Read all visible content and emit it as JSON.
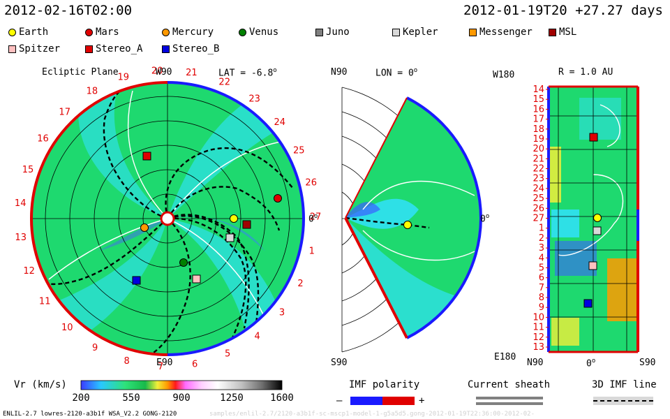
{
  "header": {
    "left_time": "2012-02-16T02:00",
    "right_time": "2012-01-19T20 +27.27 days"
  },
  "legend": [
    {
      "name": "Earth",
      "color": "#ffff00",
      "shape": "circle"
    },
    {
      "name": "Mars",
      "color": "#e00000",
      "shape": "circle"
    },
    {
      "name": "Mercury",
      "color": "#ff9900",
      "shape": "circle"
    },
    {
      "name": "Venus",
      "color": "#008000",
      "shape": "circle"
    },
    {
      "name": "Juno",
      "color": "#808080",
      "shape": "square"
    },
    {
      "name": "Kepler",
      "color": "#d9d9d9",
      "shape": "square"
    },
    {
      "name": "Messenger",
      "color": "#ff9900",
      "shape": "square"
    },
    {
      "name": "MSL",
      "color": "#a00000",
      "shape": "square"
    },
    {
      "name": "Spitzer",
      "color": "#ffc0c0",
      "shape": "square"
    },
    {
      "name": "Stereo_A",
      "color": "#e00000",
      "shape": "square"
    },
    {
      "name": "Stereo_B",
      "color": "#0000e0",
      "shape": "square"
    }
  ],
  "panels": {
    "ecliptic": {
      "title": "Ecliptic Plane",
      "top": "W90",
      "lat": "LAT = -6.8",
      "lat_sup": "o",
      "bottom": "E90",
      "right": "0",
      "right_sup": "o"
    },
    "meridional": {
      "top": "N90",
      "lon": "LON = 0",
      "lon_sup": "o",
      "bottom": "S90",
      "right": "0",
      "right_sup": "o"
    },
    "radial": {
      "top": "W180",
      "r": "R = 1.0 AU",
      "bottom": "E180",
      "bot_left": "N90",
      "bot_mid": "0",
      "bot_mid_sup": "o",
      "bot_right": "S90"
    }
  },
  "ecliptic_ticks": [
    "20",
    "21",
    "22",
    "23",
    "24",
    "25",
    "26",
    "27",
    "1",
    "2",
    "3",
    "4",
    "5",
    "6",
    "7",
    "8",
    "9",
    "10",
    "11",
    "12",
    "13",
    "14",
    "15",
    "16",
    "17",
    "18",
    "19"
  ],
  "radial_ticks": [
    "14",
    "15",
    "16",
    "17",
    "18",
    "19",
    "20",
    "21",
    "22",
    "23",
    "24",
    "25",
    "26",
    "27",
    "1",
    "2",
    "3",
    "4",
    "5",
    "6",
    "7",
    "8",
    "9",
    "10",
    "11",
    "12",
    "13"
  ],
  "colorbar": {
    "label": "Vr (km/s)",
    "ticks": [
      "200",
      "550",
      "900",
      "1250",
      "1600"
    ],
    "vmin": 200,
    "vmax": 1600
  },
  "imf": {
    "label": "IMF polarity",
    "minus": "–",
    "plus": "+"
  },
  "sheath": {
    "label": "Current sheath"
  },
  "imf3d": {
    "label": "3D IMF line"
  },
  "footer": {
    "left": "ENLIL-2.7 lowres-2120-a3b1f WSA_V2.2 GONG-2120",
    "right": "samples/enlil-2.7/2120-a3b1f-sc-mscp1-model-1-g5a5d5.gong-2012-01-19T22:36:00-2012-02-"
  }
}
